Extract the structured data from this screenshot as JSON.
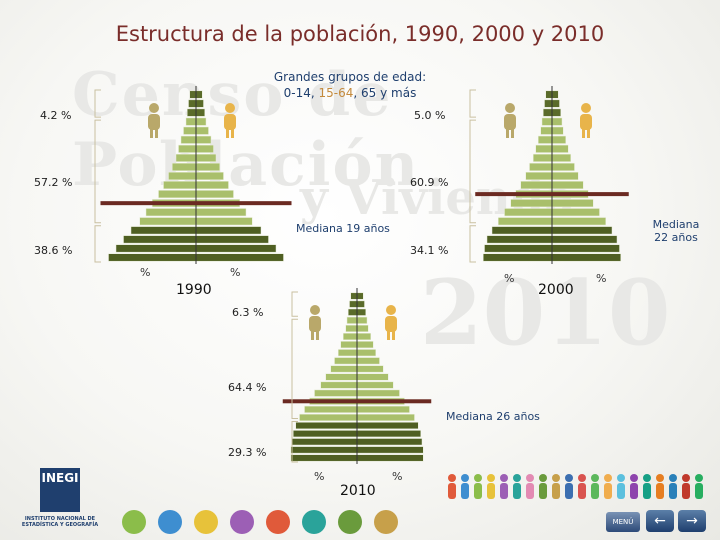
{
  "title": "Estructura de la población, 1990, 2000 y 2010",
  "subtitle": {
    "line1": "Grandes grupos de edad:",
    "a": "0-14, ",
    "b": "15-64",
    "c": ", 65 y más"
  },
  "pyramids": [
    {
      "year": "1990",
      "pct_old": "4.2 %",
      "pct_mid": "57.2 %",
      "pct_young": "38.6 %",
      "median": "Mediana 19 años",
      "age_share_levels": [
        5,
        6,
        7,
        8,
        10,
        12,
        14,
        16,
        19,
        22,
        26,
        30,
        35,
        40,
        45,
        52,
        58,
        64,
        70
      ],
      "median_level": 6
    },
    {
      "year": "2000",
      "pct_old": "5.0 %",
      "pct_mid": "60.9 %",
      "pct_young": "34.1 %",
      "median": "Mediana 22 años",
      "age_share_levels": [
        5,
        6,
        7,
        8,
        9,
        11,
        13,
        15,
        18,
        21,
        25,
        29,
        33,
        38,
        43,
        48,
        52,
        54,
        55
      ],
      "median_level": 7
    },
    {
      "year": "2010",
      "pct_old": "6.3 %",
      "pct_mid": "64.4 %",
      "pct_young": "29.3 %",
      "median": "Mediana 26 años",
      "age_share_levels": [
        5,
        6,
        7,
        8,
        9,
        11,
        13,
        15,
        18,
        21,
        25,
        29,
        34,
        38,
        42,
        46,
        49,
        51,
        52,
        53,
        53
      ],
      "median_level": 7
    }
  ],
  "percent_sign": "%",
  "logo": {
    "name": "INEGI",
    "text": "INSTITUTO NACIONAL DE ESTADÍSTICA Y GEOGRAFÍA"
  },
  "nav": {
    "menu": "MENÚ",
    "back": "←",
    "forward": "→"
  },
  "watermark": {
    "a": "Censo de Población",
    "b": "y Vivienda",
    "c": "2010"
  },
  "colors": {
    "old": "#5a6b2a",
    "adult": "#a9bf6b",
    "young": "#4f5f22",
    "median_line": "#6b2a22",
    "bracket": "#c9c0a0"
  },
  "chart_data": [
    {
      "type": "bar",
      "title": "1990",
      "series": [
        {
          "name": "0-14",
          "values": [
            38.6
          ]
        },
        {
          "name": "15-64",
          "values": [
            57.2
          ]
        },
        {
          "name": "65 y más",
          "values": [
            4.2
          ]
        }
      ],
      "annotations": [
        "Mediana 19 años"
      ]
    },
    {
      "type": "bar",
      "title": "2000",
      "series": [
        {
          "name": "0-14",
          "values": [
            34.1
          ]
        },
        {
          "name": "15-64",
          "values": [
            60.9
          ]
        },
        {
          "name": "65 y más",
          "values": [
            5.0
          ]
        }
      ],
      "annotations": [
        "Mediana 22 años"
      ]
    },
    {
      "type": "bar",
      "title": "2010",
      "series": [
        {
          "name": "0-14",
          "values": [
            29.3
          ]
        },
        {
          "name": "15-64",
          "values": [
            64.4
          ]
        },
        {
          "name": "65 y más",
          "values": [
            6.3
          ]
        }
      ],
      "annotations": [
        "Mediana 26 años"
      ]
    }
  ]
}
